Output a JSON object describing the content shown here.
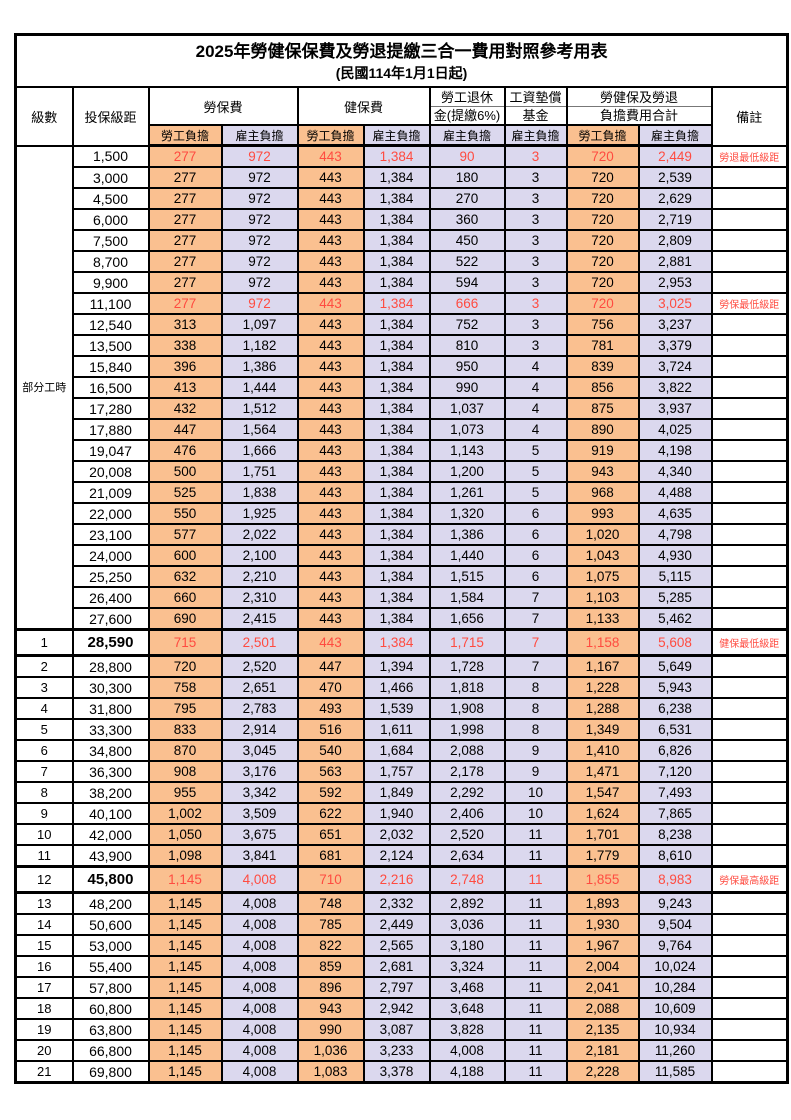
{
  "title": "2025年勞健保保費及勞退提繳三合一費用對照參考用表",
  "subtitle": "(民國114年1月1日起)",
  "colors": {
    "employee_bg": "#FAC090",
    "employer_bg": "#DBD8EE",
    "highlight_red": "#FF4B40"
  },
  "header": {
    "level": "級數",
    "bracket": "投保級距",
    "labor_fee": "勞保費",
    "health_fee": "健保費",
    "pension_line1": "勞工退休",
    "pension_line2": "金(提繳6%)",
    "wage_fund_line1": "工資墊償",
    "wage_fund_line2": "基金",
    "total_line1": "勞健保及勞退",
    "total_line2": "負擔費用合計",
    "note": "備註",
    "employee_label": "勞工負擔",
    "employer_label": "雇主負擔"
  },
  "part_time": {
    "label": "部分工時",
    "span": 23
  },
  "rows": [
    {
      "level": "",
      "bracket": "1,500",
      "values": [
        "277",
        "972",
        "443",
        "1,384",
        "90",
        "3",
        "720",
        "2,449"
      ],
      "note": "勞退最低級距",
      "red": true,
      "special": false
    },
    {
      "level": "",
      "bracket": "3,000",
      "values": [
        "277",
        "972",
        "443",
        "1,384",
        "180",
        "3",
        "720",
        "2,539"
      ],
      "note": "",
      "red": false,
      "special": false
    },
    {
      "level": "",
      "bracket": "4,500",
      "values": [
        "277",
        "972",
        "443",
        "1,384",
        "270",
        "3",
        "720",
        "2,629"
      ],
      "note": "",
      "red": false,
      "special": false
    },
    {
      "level": "",
      "bracket": "6,000",
      "values": [
        "277",
        "972",
        "443",
        "1,384",
        "360",
        "3",
        "720",
        "2,719"
      ],
      "note": "",
      "red": false,
      "special": false
    },
    {
      "level": "",
      "bracket": "7,500",
      "values": [
        "277",
        "972",
        "443",
        "1,384",
        "450",
        "3",
        "720",
        "2,809"
      ],
      "note": "",
      "red": false,
      "special": false
    },
    {
      "level": "",
      "bracket": "8,700",
      "values": [
        "277",
        "972",
        "443",
        "1,384",
        "522",
        "3",
        "720",
        "2,881"
      ],
      "note": "",
      "red": false,
      "special": false
    },
    {
      "level": "",
      "bracket": "9,900",
      "values": [
        "277",
        "972",
        "443",
        "1,384",
        "594",
        "3",
        "720",
        "2,953"
      ],
      "note": "",
      "red": false,
      "special": false
    },
    {
      "level": "",
      "bracket": "11,100",
      "values": [
        "277",
        "972",
        "443",
        "1,384",
        "666",
        "3",
        "720",
        "3,025"
      ],
      "note": "勞保最低級距",
      "red": true,
      "special": false
    },
    {
      "level": "",
      "bracket": "12,540",
      "values": [
        "313",
        "1,097",
        "443",
        "1,384",
        "752",
        "3",
        "756",
        "3,237"
      ],
      "note": "",
      "red": false,
      "special": false
    },
    {
      "level": "",
      "bracket": "13,500",
      "values": [
        "338",
        "1,182",
        "443",
        "1,384",
        "810",
        "3",
        "781",
        "3,379"
      ],
      "note": "",
      "red": false,
      "special": false
    },
    {
      "level": "",
      "bracket": "15,840",
      "values": [
        "396",
        "1,386",
        "443",
        "1,384",
        "950",
        "4",
        "839",
        "3,724"
      ],
      "note": "",
      "red": false,
      "special": false
    },
    {
      "level": "",
      "bracket": "16,500",
      "values": [
        "413",
        "1,444",
        "443",
        "1,384",
        "990",
        "4",
        "856",
        "3,822"
      ],
      "note": "",
      "red": false,
      "special": false
    },
    {
      "level": "",
      "bracket": "17,280",
      "values": [
        "432",
        "1,512",
        "443",
        "1,384",
        "1,037",
        "4",
        "875",
        "3,937"
      ],
      "note": "",
      "red": false,
      "special": false
    },
    {
      "level": "",
      "bracket": "17,880",
      "values": [
        "447",
        "1,564",
        "443",
        "1,384",
        "1,073",
        "4",
        "890",
        "4,025"
      ],
      "note": "",
      "red": false,
      "special": false
    },
    {
      "level": "",
      "bracket": "19,047",
      "values": [
        "476",
        "1,666",
        "443",
        "1,384",
        "1,143",
        "5",
        "919",
        "4,198"
      ],
      "note": "",
      "red": false,
      "special": false
    },
    {
      "level": "",
      "bracket": "20,008",
      "values": [
        "500",
        "1,751",
        "443",
        "1,384",
        "1,200",
        "5",
        "943",
        "4,340"
      ],
      "note": "",
      "red": false,
      "special": false
    },
    {
      "level": "",
      "bracket": "21,009",
      "values": [
        "525",
        "1,838",
        "443",
        "1,384",
        "1,261",
        "5",
        "968",
        "4,488"
      ],
      "note": "",
      "red": false,
      "special": false
    },
    {
      "level": "",
      "bracket": "22,000",
      "values": [
        "550",
        "1,925",
        "443",
        "1,384",
        "1,320",
        "6",
        "993",
        "4,635"
      ],
      "note": "",
      "red": false,
      "special": false
    },
    {
      "level": "",
      "bracket": "23,100",
      "values": [
        "577",
        "2,022",
        "443",
        "1,384",
        "1,386",
        "6",
        "1,020",
        "4,798"
      ],
      "note": "",
      "red": false,
      "special": false
    },
    {
      "level": "",
      "bracket": "24,000",
      "values": [
        "600",
        "2,100",
        "443",
        "1,384",
        "1,440",
        "6",
        "1,043",
        "4,930"
      ],
      "note": "",
      "red": false,
      "special": false
    },
    {
      "level": "",
      "bracket": "25,250",
      "values": [
        "632",
        "2,210",
        "443",
        "1,384",
        "1,515",
        "6",
        "1,075",
        "5,115"
      ],
      "note": "",
      "red": false,
      "special": false
    },
    {
      "level": "",
      "bracket": "26,400",
      "values": [
        "660",
        "2,310",
        "443",
        "1,384",
        "1,584",
        "7",
        "1,103",
        "5,285"
      ],
      "note": "",
      "red": false,
      "special": false
    },
    {
      "level": "",
      "bracket": "27,600",
      "values": [
        "690",
        "2,415",
        "443",
        "1,384",
        "1,656",
        "7",
        "1,133",
        "5,462"
      ],
      "note": "",
      "red": false,
      "special": false
    },
    {
      "level": "1",
      "bracket": "28,590",
      "values": [
        "715",
        "2,501",
        "443",
        "1,384",
        "1,715",
        "7",
        "1,158",
        "5,608"
      ],
      "note": "健保最低級距",
      "red": true,
      "special": true
    },
    {
      "level": "2",
      "bracket": "28,800",
      "values": [
        "720",
        "2,520",
        "447",
        "1,394",
        "1,728",
        "7",
        "1,167",
        "5,649"
      ],
      "note": "",
      "red": false,
      "special": false
    },
    {
      "level": "3",
      "bracket": "30,300",
      "values": [
        "758",
        "2,651",
        "470",
        "1,466",
        "1,818",
        "8",
        "1,228",
        "5,943"
      ],
      "note": "",
      "red": false,
      "special": false
    },
    {
      "level": "4",
      "bracket": "31,800",
      "values": [
        "795",
        "2,783",
        "493",
        "1,539",
        "1,908",
        "8",
        "1,288",
        "6,238"
      ],
      "note": "",
      "red": false,
      "special": false
    },
    {
      "level": "5",
      "bracket": "33,300",
      "values": [
        "833",
        "2,914",
        "516",
        "1,611",
        "1,998",
        "8",
        "1,349",
        "6,531"
      ],
      "note": "",
      "red": false,
      "special": false
    },
    {
      "level": "6",
      "bracket": "34,800",
      "values": [
        "870",
        "3,045",
        "540",
        "1,684",
        "2,088",
        "9",
        "1,410",
        "6,826"
      ],
      "note": "",
      "red": false,
      "special": false
    },
    {
      "level": "7",
      "bracket": "36,300",
      "values": [
        "908",
        "3,176",
        "563",
        "1,757",
        "2,178",
        "9",
        "1,471",
        "7,120"
      ],
      "note": "",
      "red": false,
      "special": false
    },
    {
      "level": "8",
      "bracket": "38,200",
      "values": [
        "955",
        "3,342",
        "592",
        "1,849",
        "2,292",
        "10",
        "1,547",
        "7,493"
      ],
      "note": "",
      "red": false,
      "special": false
    },
    {
      "level": "9",
      "bracket": "40,100",
      "values": [
        "1,002",
        "3,509",
        "622",
        "1,940",
        "2,406",
        "10",
        "1,624",
        "7,865"
      ],
      "note": "",
      "red": false,
      "special": false
    },
    {
      "level": "10",
      "bracket": "42,000",
      "values": [
        "1,050",
        "3,675",
        "651",
        "2,032",
        "2,520",
        "11",
        "1,701",
        "8,238"
      ],
      "note": "",
      "red": false,
      "special": false
    },
    {
      "level": "11",
      "bracket": "43,900",
      "values": [
        "1,098",
        "3,841",
        "681",
        "2,124",
        "2,634",
        "11",
        "1,779",
        "8,610"
      ],
      "note": "",
      "red": false,
      "special": false
    },
    {
      "level": "12",
      "bracket": "45,800",
      "values": [
        "1,145",
        "4,008",
        "710",
        "2,216",
        "2,748",
        "11",
        "1,855",
        "8,983"
      ],
      "note": "勞保最高級距",
      "red": true,
      "special": true
    },
    {
      "level": "13",
      "bracket": "48,200",
      "values": [
        "1,145",
        "4,008",
        "748",
        "2,332",
        "2,892",
        "11",
        "1,893",
        "9,243"
      ],
      "note": "",
      "red": false,
      "special": false
    },
    {
      "level": "14",
      "bracket": "50,600",
      "values": [
        "1,145",
        "4,008",
        "785",
        "2,449",
        "3,036",
        "11",
        "1,930",
        "9,504"
      ],
      "note": "",
      "red": false,
      "special": false
    },
    {
      "level": "15",
      "bracket": "53,000",
      "values": [
        "1,145",
        "4,008",
        "822",
        "2,565",
        "3,180",
        "11",
        "1,967",
        "9,764"
      ],
      "note": "",
      "red": false,
      "special": false
    },
    {
      "level": "16",
      "bracket": "55,400",
      "values": [
        "1,145",
        "4,008",
        "859",
        "2,681",
        "3,324",
        "11",
        "2,004",
        "10,024"
      ],
      "note": "",
      "red": false,
      "special": false
    },
    {
      "level": "17",
      "bracket": "57,800",
      "values": [
        "1,145",
        "4,008",
        "896",
        "2,797",
        "3,468",
        "11",
        "2,041",
        "10,284"
      ],
      "note": "",
      "red": false,
      "special": false
    },
    {
      "level": "18",
      "bracket": "60,800",
      "values": [
        "1,145",
        "4,008",
        "943",
        "2,942",
        "3,648",
        "11",
        "2,088",
        "10,609"
      ],
      "note": "",
      "red": false,
      "special": false
    },
    {
      "level": "19",
      "bracket": "63,800",
      "values": [
        "1,145",
        "4,008",
        "990",
        "3,087",
        "3,828",
        "11",
        "2,135",
        "10,934"
      ],
      "note": "",
      "red": false,
      "special": false
    },
    {
      "level": "20",
      "bracket": "66,800",
      "values": [
        "1,145",
        "4,008",
        "1,036",
        "3,233",
        "4,008",
        "11",
        "2,181",
        "11,260"
      ],
      "note": "",
      "red": false,
      "special": false
    },
    {
      "level": "21",
      "bracket": "69,800",
      "values": [
        "1,145",
        "4,008",
        "1,083",
        "3,378",
        "4,188",
        "11",
        "2,228",
        "11,585"
      ],
      "note": "",
      "red": false,
      "special": false
    }
  ]
}
